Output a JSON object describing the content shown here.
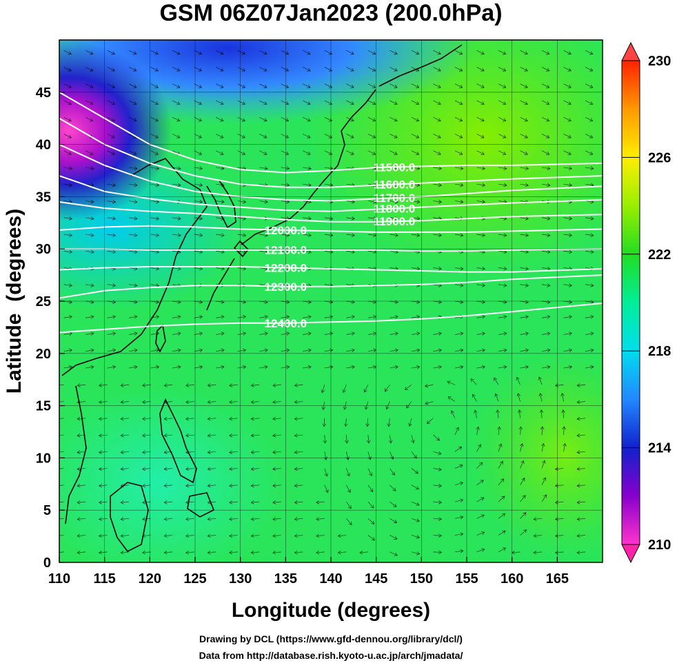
{
  "chart_data": {
    "type": "heatmap",
    "title": "GSM 06Z07Jan2023 (200.0hPa)",
    "xlabel": "Longitude (degrees)",
    "ylabel": "Latitude  (degrees)",
    "xlim": [
      110,
      170
    ],
    "ylim": [
      0,
      50
    ],
    "x_ticks": [
      110,
      115,
      120,
      125,
      130,
      135,
      140,
      145,
      150,
      155,
      160,
      165
    ],
    "y_ticks": [
      0,
      5,
      10,
      15,
      20,
      25,
      30,
      35,
      40,
      45
    ],
    "grid": true,
    "colorbar": {
      "min": 210,
      "max": 230,
      "ticks": [
        210,
        214,
        218,
        222,
        226,
        230
      ],
      "colors": [
        "#ff33cc",
        "#8800cc",
        "#1122cc",
        "#2288ff",
        "#00ddee",
        "#00ee99",
        "#22dd22",
        "#99ee00",
        "#ffee00",
        "#ff9900",
        "#ff2200"
      ]
    },
    "contours": [
      {
        "value": "11500.0",
        "points": [
          [
            110,
            45.0
          ],
          [
            115,
            42.5
          ],
          [
            120,
            40.0
          ],
          [
            125,
            38.5
          ],
          [
            130,
            37.6
          ],
          [
            135,
            37.3
          ],
          [
            140,
            37.5
          ],
          [
            145,
            37.8
          ],
          [
            150,
            37.9
          ],
          [
            155,
            38.0
          ],
          [
            160,
            38.0
          ],
          [
            170,
            38.2
          ]
        ]
      },
      {
        "value": "11600.0",
        "points": [
          [
            110,
            42.5
          ],
          [
            115,
            40.0
          ],
          [
            120,
            38.2
          ],
          [
            125,
            37.0
          ],
          [
            130,
            36.2
          ],
          [
            135,
            35.9
          ],
          [
            140,
            35.9
          ],
          [
            145,
            36.1
          ],
          [
            150,
            36.3
          ],
          [
            155,
            36.5
          ],
          [
            160,
            36.7
          ],
          [
            170,
            37.0
          ]
        ]
      },
      {
        "value": "11700.0",
        "points": [
          [
            110,
            40.0
          ],
          [
            115,
            38.0
          ],
          [
            120,
            36.5
          ],
          [
            125,
            35.5
          ],
          [
            130,
            35.0
          ],
          [
            135,
            34.7
          ],
          [
            140,
            34.6
          ],
          [
            145,
            34.8
          ],
          [
            150,
            35.0
          ],
          [
            155,
            35.3
          ],
          [
            160,
            35.6
          ],
          [
            170,
            36.0
          ]
        ]
      },
      {
        "value": "11800.0",
        "points": [
          [
            110,
            37.0
          ],
          [
            115,
            35.5
          ],
          [
            120,
            34.8
          ],
          [
            125,
            34.3
          ],
          [
            130,
            34.0
          ],
          [
            135,
            33.7
          ],
          [
            140,
            33.6
          ],
          [
            145,
            33.8
          ],
          [
            150,
            34.0
          ],
          [
            155,
            34.2
          ],
          [
            160,
            34.4
          ],
          [
            170,
            34.7
          ]
        ]
      },
      {
        "value": "11900.0",
        "points": [
          [
            110,
            34.5
          ],
          [
            115,
            33.9
          ],
          [
            120,
            33.6
          ],
          [
            125,
            33.4
          ],
          [
            130,
            33.1
          ],
          [
            135,
            32.8
          ],
          [
            140,
            32.6
          ],
          [
            145,
            32.6
          ],
          [
            150,
            32.7
          ],
          [
            155,
            32.9
          ],
          [
            160,
            33.1
          ],
          [
            170,
            33.3
          ]
        ]
      },
      {
        "value": "12000.0",
        "points": [
          [
            110,
            31.8
          ],
          [
            115,
            32.1
          ],
          [
            120,
            32.2
          ],
          [
            125,
            32.1
          ],
          [
            130,
            31.9
          ],
          [
            135,
            31.8
          ],
          [
            140,
            31.7
          ],
          [
            145,
            31.6
          ],
          [
            150,
            31.6
          ],
          [
            155,
            31.6
          ],
          [
            160,
            31.7
          ],
          [
            170,
            31.9
          ]
        ]
      },
      {
        "value": "12100.0",
        "points": [
          [
            110,
            30.0
          ],
          [
            115,
            30.0
          ],
          [
            120,
            29.9
          ],
          [
            125,
            29.9
          ],
          [
            130,
            29.9
          ],
          [
            135,
            29.9
          ],
          [
            140,
            29.9
          ],
          [
            145,
            29.9
          ],
          [
            150,
            29.8
          ],
          [
            155,
            29.8
          ],
          [
            160,
            29.9
          ],
          [
            170,
            30.0
          ]
        ]
      },
      {
        "value": "12200.0",
        "points": [
          [
            110,
            28.0
          ],
          [
            115,
            28.2
          ],
          [
            120,
            28.3
          ],
          [
            125,
            28.3
          ],
          [
            130,
            28.3
          ],
          [
            135,
            28.2
          ],
          [
            140,
            28.1
          ],
          [
            145,
            28.0
          ],
          [
            150,
            27.9
          ],
          [
            155,
            27.8
          ],
          [
            160,
            27.8
          ],
          [
            170,
            28.1
          ]
        ]
      },
      {
        "value": "12300.0",
        "points": [
          [
            110,
            25.3
          ],
          [
            115,
            26.0
          ],
          [
            120,
            26.3
          ],
          [
            125,
            26.5
          ],
          [
            130,
            26.5
          ],
          [
            135,
            26.4
          ],
          [
            140,
            26.4
          ],
          [
            145,
            26.5
          ],
          [
            150,
            26.6
          ],
          [
            155,
            26.8
          ],
          [
            160,
            27.1
          ],
          [
            170,
            27.5
          ]
        ]
      },
      {
        "value": "12400.0",
        "points": [
          [
            110,
            22.0
          ],
          [
            115,
            22.3
          ],
          [
            120,
            22.6
          ],
          [
            125,
            22.8
          ],
          [
            130,
            22.9
          ],
          [
            135,
            22.9
          ],
          [
            140,
            23.0
          ],
          [
            145,
            23.1
          ],
          [
            150,
            23.3
          ],
          [
            155,
            23.6
          ],
          [
            160,
            24.0
          ],
          [
            170,
            24.8
          ]
        ]
      }
    ]
  },
  "credits": {
    "line1": "Drawing by DCL (https://www.gfd-dennou.org/library/dcl/)",
    "line2": "Data from http://database.rish.kyoto-u.ac.jp/arch/jmadata/"
  }
}
